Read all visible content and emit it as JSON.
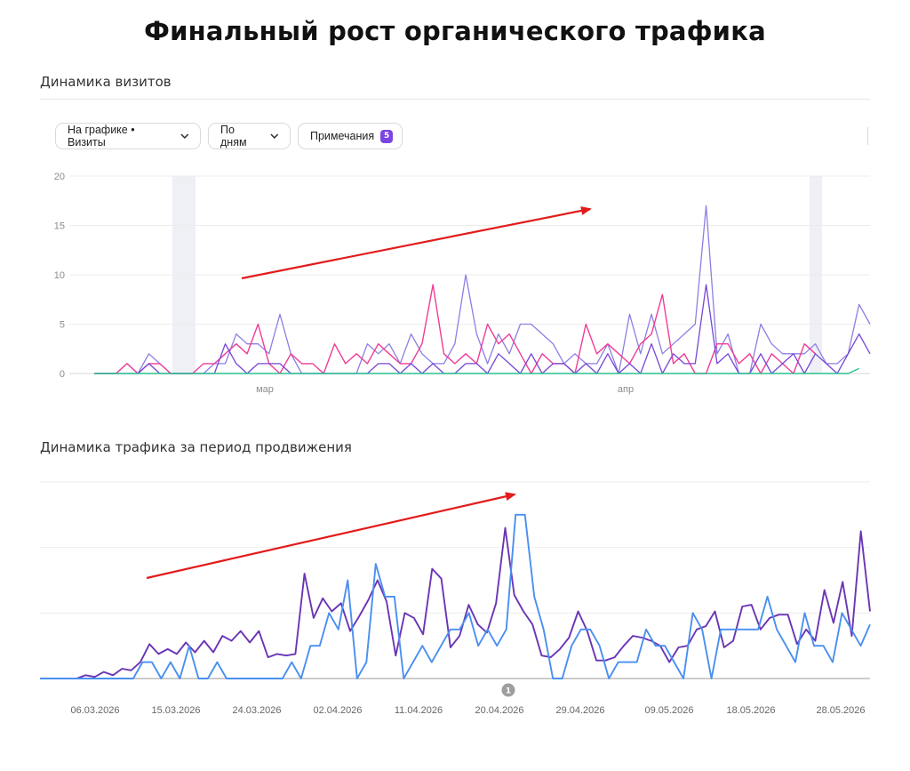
{
  "page_title": "Финальный рост органического трафика",
  "visits_section": {
    "title": "Динамика визитов",
    "toolbar": {
      "graph_label": "На графике • Визиты",
      "period_label": "По дням",
      "notes_label": "Примечания",
      "notes_count": "5"
    }
  },
  "traffic_section": {
    "title": "Динамика трафика за период продвижения",
    "note_marker": "1"
  },
  "colors": {
    "violet_light": "#8c7fe3",
    "pink": "#ef3d96",
    "purple": "#7646d6",
    "teal": "#27c28f",
    "dark_purple": "#6a35b5",
    "blue": "#4a8ff0",
    "arrow": "#e31b1b",
    "badge": "#7b45e0"
  },
  "chart_data": [
    {
      "type": "line",
      "title": "Динамика визитов",
      "ylim": [
        0,
        20
      ],
      "y_ticks": [
        "0",
        "5",
        "10",
        "15",
        "20"
      ],
      "x_tick_labels": [
        "мар",
        "апр"
      ],
      "grid": true,
      "trend_arrow": true,
      "series": [
        {
          "color": "violet_light",
          "values": [
            0,
            0,
            0,
            1,
            0,
            2,
            1,
            0,
            0,
            0,
            0,
            1,
            1,
            4,
            3,
            3,
            2,
            6,
            2,
            0,
            0,
            0,
            0,
            0,
            0,
            3,
            2,
            3,
            1,
            4,
            2,
            1,
            1,
            3,
            10,
            4,
            1,
            4,
            2,
            5,
            5,
            4,
            3,
            1,
            2,
            1,
            1,
            3,
            0,
            6,
            2,
            6,
            2,
            3,
            4,
            5,
            17,
            2,
            4,
            0,
            0,
            5,
            3,
            2,
            2,
            2,
            3,
            1,
            1,
            2,
            7,
            5
          ]
        },
        {
          "color": "pink",
          "values": [
            0,
            0,
            0,
            1,
            0,
            1,
            1,
            0,
            0,
            0,
            1,
            1,
            2,
            3,
            2,
            5,
            1,
            0,
            2,
            1,
            1,
            0,
            3,
            1,
            2,
            1,
            3,
            2,
            1,
            1,
            3,
            9,
            2,
            1,
            2,
            1,
            5,
            3,
            4,
            2,
            0,
            2,
            1,
            1,
            0,
            5,
            2,
            3,
            2,
            1,
            3,
            4,
            8,
            1,
            2,
            0,
            0,
            3,
            3,
            1,
            2,
            0,
            2,
            1,
            0,
            3,
            2
          ]
        },
        {
          "color": "purple",
          "values": [
            0,
            0,
            0,
            0,
            0,
            1,
            0,
            0,
            0,
            0,
            0,
            0,
            3,
            1,
            0,
            1,
            1,
            1,
            0,
            0,
            0,
            0,
            0,
            0,
            0,
            0,
            1,
            1,
            0,
            1,
            0,
            1,
            0,
            0,
            1,
            1,
            0,
            2,
            1,
            0,
            2,
            0,
            1,
            1,
            0,
            1,
            0,
            2,
            0,
            1,
            0,
            3,
            0,
            2,
            1,
            1,
            9,
            1,
            2,
            0,
            0,
            2,
            0,
            1,
            2,
            0,
            2,
            1,
            0,
            2,
            4,
            2
          ]
        },
        {
          "color": "teal",
          "values": [
            0,
            0,
            0,
            0,
            0,
            0,
            0,
            0,
            0,
            0,
            0,
            0,
            0,
            0,
            0,
            0,
            0,
            0,
            0,
            0,
            0,
            0,
            0,
            0,
            0,
            0,
            0,
            0,
            0,
            0,
            0,
            0,
            0,
            0,
            0,
            0,
            0,
            0,
            0,
            0,
            0,
            0,
            0,
            0,
            0,
            0,
            0,
            0,
            0,
            0,
            0,
            0,
            0,
            0,
            0,
            0,
            0,
            0,
            0,
            0,
            0,
            0,
            0,
            0,
            0,
            0,
            0,
            0,
            0,
            0,
            0.5
          ]
        }
      ]
    },
    {
      "type": "line",
      "title": "Динамика трафика за период продвижения",
      "x_tick_labels": [
        "06.03.2026",
        "15.03.2026",
        "24.03.2026",
        "02.04.2026",
        "11.04.2026",
        "20.04.2026",
        "29.04.2026",
        "09.05.2026",
        "18.05.2026",
        "28.05.2026"
      ],
      "grid": true,
      "trend_arrow": true,
      "series": [
        {
          "color": "dark_purple",
          "values": [
            0,
            0,
            0,
            0,
            0,
            0.2,
            0.1,
            0.4,
            0.2,
            0.6,
            0.5,
            1.0,
            2.1,
            1.5,
            1.8,
            1.5,
            2.2,
            1.6,
            2.3,
            1.6,
            2.6,
            2.3,
            2.9,
            2.2,
            2.9,
            1.3,
            1.5,
            1.4,
            1.5,
            6.4,
            3.7,
            4.9,
            4.1,
            4.6,
            2.9,
            3.8,
            4.8,
            6.0,
            4.7,
            1.4,
            4.0,
            3.7,
            2.7,
            6.7,
            6.1,
            1.9,
            2.6,
            4.5,
            3.3,
            2.8,
            4.6,
            9.2,
            5.1,
            4.1,
            3.3,
            1.4,
            1.3,
            1.8,
            2.5,
            4.1,
            2.9,
            1.1,
            1.1,
            1.3,
            2.0,
            2.6,
            2.5,
            2.3,
            2.0,
            1.0,
            1.9,
            2.0,
            3.0,
            3.2,
            4.1,
            1.9,
            2.3,
            4.4,
            4.5,
            3.0,
            3.7,
            3.9,
            3.9,
            2.1,
            3.0,
            2.3,
            5.4,
            3.4,
            5.9,
            2.6,
            9.0,
            4.1
          ]
        },
        {
          "color": "blue",
          "values": [
            0,
            0,
            0,
            0,
            0,
            0,
            0,
            0,
            0,
            0,
            0,
            1.0,
            1.0,
            0,
            1.0,
            0,
            2.0,
            0,
            0,
            1.0,
            0,
            0,
            0,
            0,
            0,
            0,
            0,
            1.0,
            0,
            2.0,
            2.0,
            4.0,
            3.0,
            6.0,
            0,
            1.0,
            7.0,
            5.0,
            5.0,
            0,
            1.0,
            2.0,
            1.0,
            2.0,
            3.0,
            3.0,
            4.0,
            2.0,
            3.0,
            2.0,
            3.0,
            10.0,
            10.0,
            5.0,
            3.0,
            0,
            0,
            2.0,
            3.0,
            3.0,
            2.0,
            0,
            1.0,
            1.0,
            1.0,
            3.0,
            2.0,
            2.0,
            1.0,
            0,
            4.0,
            3.0,
            0,
            3.0,
            3.0,
            3.0,
            3.0,
            3.0,
            5.0,
            3.0,
            2.0,
            1.0,
            4.0,
            2.0,
            2.0,
            1.0,
            4.0,
            3.0,
            2.0,
            3.3
          ]
        }
      ]
    }
  ]
}
